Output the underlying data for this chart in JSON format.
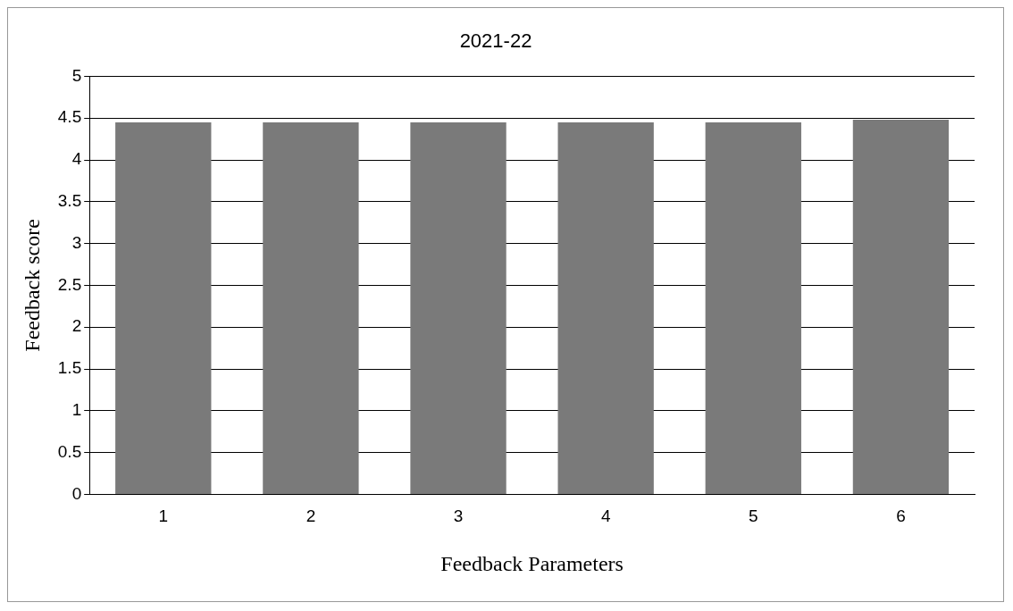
{
  "chart_data": {
    "type": "bar",
    "title": "2021-22",
    "xlabel": "Feedback Parameters",
    "ylabel": "Feedback score",
    "categories": [
      "1",
      "2",
      "3",
      "4",
      "5",
      "6"
    ],
    "values": [
      4.45,
      4.45,
      4.45,
      4.45,
      4.45,
      4.48
    ],
    "color": "#7a7a7a",
    "ylim": [
      0,
      5
    ],
    "yticks": [
      0,
      0.5,
      1,
      1.5,
      2,
      2.5,
      3,
      3.5,
      4,
      4.5,
      5
    ],
    "grid": "y",
    "legend": false
  }
}
